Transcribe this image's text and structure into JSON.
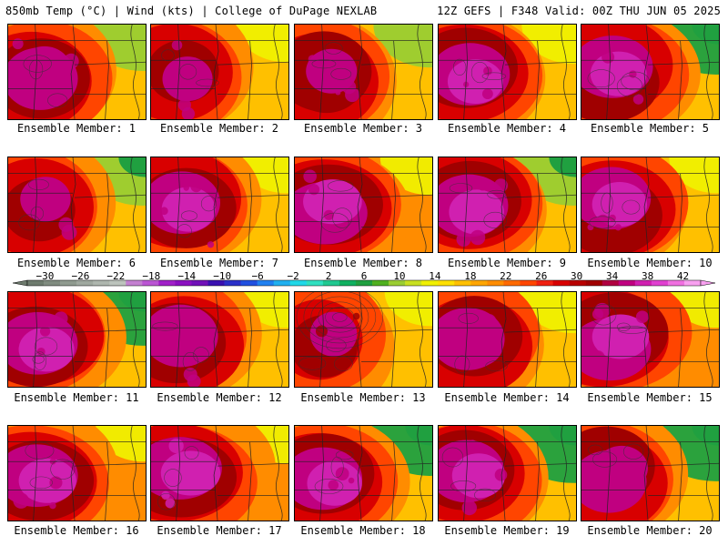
{
  "header": {
    "left": "850mb Temp (°C) | Wind (kts) | College of DuPage NEXLAB",
    "right": "12Z GEFS | F348 Valid: 00Z THU JUN 05 2025"
  },
  "caption_prefix": "Ensemble Member:",
  "members": [
    {
      "id": 1,
      "label": "Ensemble Member: 1",
      "warmth": 0.62,
      "cool_ne": 0.55
    },
    {
      "id": 2,
      "label": "Ensemble Member: 2",
      "warmth": 0.55,
      "cool_ne": 0.3
    },
    {
      "id": 3,
      "label": "Ensemble Member: 3",
      "warmth": 0.58,
      "cool_ne": 0.45
    },
    {
      "id": 4,
      "label": "Ensemble Member: 4",
      "warmth": 0.72,
      "cool_ne": 0.35
    },
    {
      "id": 5,
      "label": "Ensemble Member: 5",
      "warmth": 0.74,
      "cool_ne": 0.65
    },
    {
      "id": 6,
      "label": "Ensemble Member: 6",
      "warmth": 0.56,
      "cool_ne": 0.6
    },
    {
      "id": 7,
      "label": "Ensemble Member: 7",
      "warmth": 0.66,
      "cool_ne": 0.25
    },
    {
      "id": 8,
      "label": "Ensemble Member: 8",
      "warmth": 0.82,
      "cool_ne": 0.3
    },
    {
      "id": 9,
      "label": "Ensemble Member: 9",
      "warmth": 0.7,
      "cool_ne": 0.6
    },
    {
      "id": 10,
      "label": "Ensemble Member: 10",
      "warmth": 0.7,
      "cool_ne": 0.25
    },
    {
      "id": 11,
      "label": "Ensemble Member: 11",
      "warmth": 0.72,
      "cool_ne": 0.75
    },
    {
      "id": 12,
      "label": "Ensemble Member: 12",
      "warmth": 0.62,
      "cool_ne": 0.25
    },
    {
      "id": 13,
      "label": "Ensemble Member: 13",
      "warmth": 0.45,
      "cool_ne": 0.2
    },
    {
      "id": 14,
      "label": "Ensemble Member: 14",
      "warmth": 0.6,
      "cool_ne": 0.4
    },
    {
      "id": 15,
      "label": "Ensemble Member: 15",
      "warmth": 0.76,
      "cool_ne": 0.25
    },
    {
      "id": 16,
      "label": "Ensemble Member: 16",
      "warmth": 0.78,
      "cool_ne": 0.25
    },
    {
      "id": 17,
      "label": "Ensemble Member: 17",
      "warmth": 0.84,
      "cool_ne": 0.3
    },
    {
      "id": 18,
      "label": "Ensemble Member: 18",
      "warmth": 0.7,
      "cool_ne": 0.65
    },
    {
      "id": 19,
      "label": "Ensemble Member: 19",
      "warmth": 0.64,
      "cool_ne": 0.85
    },
    {
      "id": 20,
      "label": "Ensemble Member: 20",
      "warmth": 0.62,
      "cool_ne": 0.8
    }
  ],
  "legend": {
    "labels": [
      "−30",
      "−26",
      "−22",
      "−18",
      "−14",
      "−10",
      "−6",
      "−2",
      "2",
      "6",
      "10",
      "14",
      "18",
      "22",
      "26",
      "30",
      "34",
      "38",
      "42"
    ],
    "min": -32,
    "max": 44,
    "colors": [
      "#6e7b6e",
      "#7f8b7f",
      "#8f9a8f",
      "#9fa89f",
      "#aeb6ae",
      "#bcc3bc",
      "#c37fd0",
      "#ba55d3",
      "#a020c8",
      "#8a10c0",
      "#7010b8",
      "#3a10b0",
      "#2a30c8",
      "#2050e0",
      "#2080f0",
      "#20b0f0",
      "#20d8e8",
      "#30e0c0",
      "#20c890",
      "#10b060",
      "#20a040",
      "#50b020",
      "#9acd32",
      "#c8e020",
      "#f0f000",
      "#ffe000",
      "#ffc000",
      "#ffa500",
      "#ff8c00",
      "#ff6a00",
      "#ff4500",
      "#f02010",
      "#d80000",
      "#b80000",
      "#a00000",
      "#b00040",
      "#c00080",
      "#d020b0",
      "#e040d0",
      "#f070e0",
      "#f8a0f0"
    ]
  }
}
